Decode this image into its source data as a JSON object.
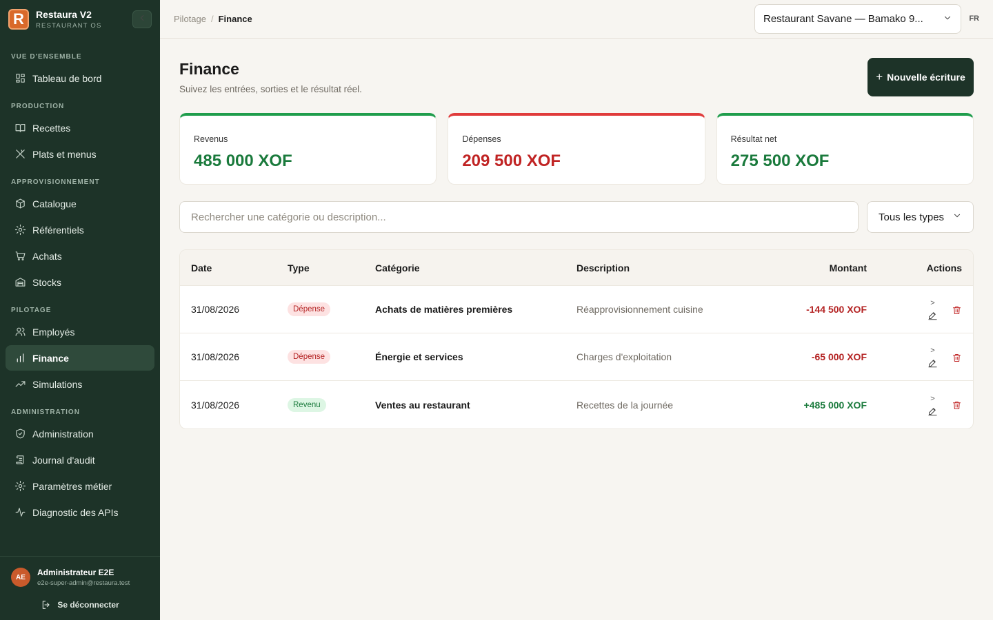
{
  "brand": {
    "name": "Restaura V2",
    "subtitle": "RESTAURANT OS",
    "logo_letter": "R"
  },
  "sidebar": {
    "sections": [
      {
        "title": "VUE D'ENSEMBLE",
        "items": [
          {
            "label": "Tableau de bord",
            "icon": "dashboard-icon"
          }
        ]
      },
      {
        "title": "PRODUCTION",
        "items": [
          {
            "label": "Recettes",
            "icon": "book-icon"
          },
          {
            "label": "Plats et menus",
            "icon": "utensils-icon"
          }
        ]
      },
      {
        "title": "APPROVISIONNEMENT",
        "items": [
          {
            "label": "Catalogue",
            "icon": "package-icon"
          },
          {
            "label": "Référentiels",
            "icon": "gear-icon"
          },
          {
            "label": "Achats",
            "icon": "cart-icon"
          },
          {
            "label": "Stocks",
            "icon": "warehouse-icon"
          }
        ]
      },
      {
        "title": "PILOTAGE",
        "items": [
          {
            "label": "Employés",
            "icon": "users-icon"
          },
          {
            "label": "Finance",
            "icon": "bar-chart-icon",
            "active": true
          },
          {
            "label": "Simulations",
            "icon": "trend-icon"
          }
        ]
      },
      {
        "title": "ADMINISTRATION",
        "items": [
          {
            "label": "Administration",
            "icon": "shield-icon"
          },
          {
            "label": "Journal d'audit",
            "icon": "scroll-icon"
          },
          {
            "label": "Paramètres métier",
            "icon": "gear-icon"
          },
          {
            "label": "Diagnostic des APIs",
            "icon": "pulse-icon"
          }
        ]
      }
    ]
  },
  "user": {
    "initials": "AE",
    "name": "Administrateur E2E",
    "email": "e2e-super-admin@restaura.test",
    "logout_label": "Se déconnecter"
  },
  "topbar": {
    "breadcrumb_parent": "Pilotage",
    "breadcrumb_separator": "/",
    "breadcrumb_current": "Finance",
    "restaurant": "Restaurant Savane — Bamako 9...",
    "lang": "FR"
  },
  "page": {
    "title": "Finance",
    "subtitle": "Suivez les entrées, sorties et le résultat réel.",
    "new_button": "Nouvelle écriture",
    "new_button_icon": "+"
  },
  "kpis": {
    "revenue": {
      "label": "Revenus",
      "value": "485 000 XOF"
    },
    "expenses": {
      "label": "Dépenses",
      "value": "209 500 XOF"
    },
    "net": {
      "label": "Résultat net",
      "value": "275 500 XOF"
    }
  },
  "filters": {
    "search_placeholder": "Rechercher une catégorie ou description...",
    "search_value": "",
    "type_value": "Tous les types"
  },
  "table": {
    "headers": {
      "date": "Date",
      "type": "Type",
      "category": "Catégorie",
      "description": "Description",
      "amount": "Montant",
      "actions": "Actions"
    },
    "edit_prefix": ">",
    "rows": [
      {
        "date": "31/08/2026",
        "type": "Dépense",
        "category": "Achats de matières premières",
        "description": "Réapprovisionnement cuisine",
        "amount": "-144 500 XOF"
      },
      {
        "date": "31/08/2026",
        "type": "Dépense",
        "category": "Énergie et services",
        "description": "Charges d'exploitation",
        "amount": "-65 000 XOF"
      },
      {
        "date": "31/08/2026",
        "type": "Revenu",
        "category": "Ventes au restaurant",
        "description": "Recettes de la journée",
        "amount": "+485 000 XOF"
      }
    ]
  },
  "colors": {
    "sidebar_bg": "#1d3328",
    "accent_orange": "#d9692a",
    "positive": "#1a7a3c",
    "negative": "#c02323"
  }
}
